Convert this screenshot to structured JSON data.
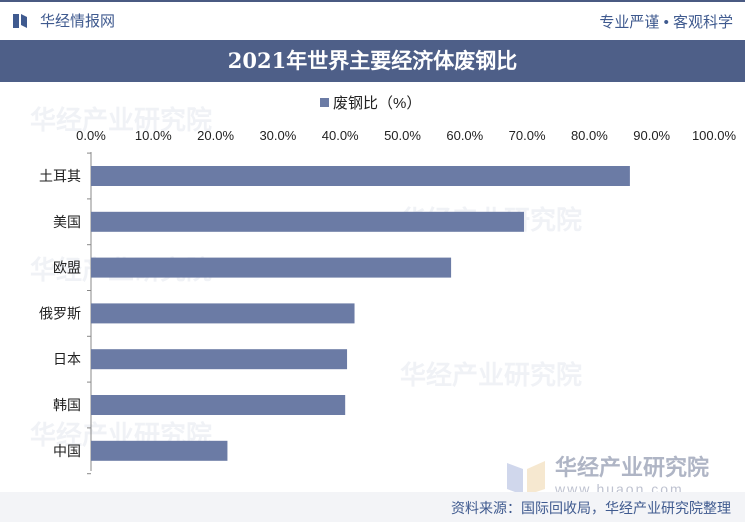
{
  "header": {
    "brand": "华经情报网",
    "tagline": "专业严谨 • 客观科学"
  },
  "title": "2021年世界主要经济体废钢比",
  "source": "资料来源：国际回收局，华经产业研究院整理",
  "watermark": {
    "text": "华经产业研究院",
    "url": "www.huaon.com"
  },
  "colors": {
    "bar": "#6b7ba5",
    "title_bg": "#4e5f88",
    "brand": "#3f5a8f"
  },
  "chart_data": {
    "type": "bar",
    "orientation": "horizontal",
    "title": "2021年世界主要经济体废钢比",
    "categories": [
      "土耳其",
      "美国",
      "欧盟",
      "俄罗斯",
      "日本",
      "韩国",
      "中国"
    ],
    "series": [
      {
        "name": "废钢比（%）",
        "values": [
          86.5,
          69.5,
          57.8,
          42.3,
          41.1,
          40.8,
          21.9
        ]
      }
    ],
    "xlim": [
      0,
      100
    ],
    "xticks": [
      "0.0%",
      "10.0%",
      "20.0%",
      "30.0%",
      "40.0%",
      "50.0%",
      "60.0%",
      "70.0%",
      "80.0%",
      "90.0%",
      "100.0%"
    ],
    "xaxis_position": "top",
    "grid": false,
    "legend": "top-center"
  }
}
